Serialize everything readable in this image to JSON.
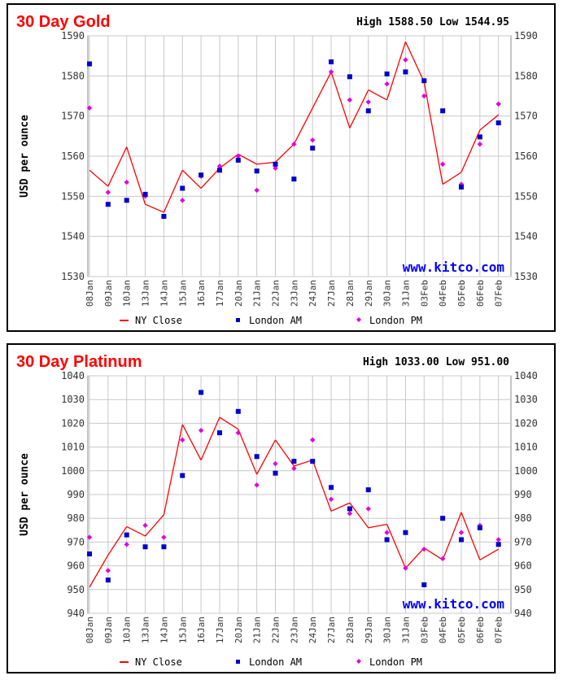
{
  "charts": [
    {
      "id": "gold",
      "title": "30 Day Gold",
      "high_label": "High",
      "high": "1588.50",
      "low_label": "Low",
      "low": "1544.95",
      "ylabel": "USD per ounce",
      "watermark": "www.kitco.com",
      "legend": [
        "NY Close",
        "London AM",
        "London PM"
      ],
      "yticks": [
        "1590",
        "1580",
        "1570",
        "1560",
        "1550",
        "1540",
        "1530"
      ],
      "chart_data": {
        "type": "line",
        "categories": [
          "08Jan",
          "09Jan",
          "10Jan",
          "13Jan",
          "14Jan",
          "15Jan",
          "16Jan",
          "17Jan",
          "20Jan",
          "21Jan",
          "22Jan",
          "23Jan",
          "24Jan",
          "27Jan",
          "28Jan",
          "29Jan",
          "30Jan",
          "31Jan",
          "03Feb",
          "04Feb",
          "05Feb",
          "06Feb",
          "07Feb"
        ],
        "ylim": [
          1530,
          1590
        ],
        "series": [
          {
            "name": "NY Close",
            "type": "line",
            "values": [
              1556.5,
              1552.5,
              1562.3,
              1548.0,
              1546.0,
              1556.5,
              1552.0,
              1557.0,
              1560.5,
              1558.0,
              1558.5,
              1563.0,
              1572.0,
              1581.0,
              1567.0,
              1576.5,
              1574.0,
              1588.5,
              1578.5,
              1553.0,
              1556.0,
              1566.5,
              1570.3
            ]
          },
          {
            "name": "London AM",
            "type": "scatter",
            "values": [
              1583.0,
              1548.0,
              1549.0,
              1550.5,
              1545.0,
              1552.0,
              1555.3,
              1556.5,
              1559.0,
              1556.3,
              1558.0,
              1554.3,
              1562.0,
              1583.5,
              1579.8,
              1571.3,
              1580.5,
              1581.0,
              1578.8,
              1571.3,
              1552.3,
              1564.8,
              1568.3
            ]
          },
          {
            "name": "London PM",
            "type": "scatter",
            "values": [
              1572.0,
              1551.0,
              1553.5,
              1550.0,
              1544.95,
              1549.0,
              1555.0,
              1557.5,
              1560.0,
              1551.5,
              1557.0,
              1563.0,
              1564.0,
              1581.0,
              1574.0,
              1573.5,
              1578.0,
              1584.0,
              1575.0,
              1558.0,
              1553.0,
              1563.0,
              1573.0
            ]
          }
        ]
      }
    },
    {
      "id": "plat",
      "title": "30 Day Platinum",
      "high_label": "High",
      "high": "1033.00",
      "low_label": "Low",
      "low": "951.00",
      "ylabel": "USD per ounce",
      "watermark": "www.kitco.com",
      "legend": [
        "NY Close",
        "London AM",
        "London PM"
      ],
      "yticks": [
        "1040",
        "1030",
        "1020",
        "1010",
        "1000",
        "990",
        "980",
        "970",
        "960",
        "950",
        "940"
      ],
      "chart_data": {
        "type": "line",
        "categories": [
          "08Jan",
          "09Jan",
          "10Jan",
          "13Jan",
          "14Jan",
          "15Jan",
          "16Jan",
          "17Jan",
          "20Jan",
          "21Jan",
          "22Jan",
          "23Jan",
          "24Jan",
          "27Jan",
          "28Jan",
          "29Jan",
          "30Jan",
          "31Jan",
          "03Feb",
          "04Feb",
          "05Feb",
          "06Feb",
          "07Feb"
        ],
        "ylim": [
          940,
          1040
        ],
        "series": [
          {
            "name": "NY Close",
            "type": "line",
            "values": [
              951.0,
              964.5,
              976.5,
              972.5,
              981.5,
              1019.5,
              1004.5,
              1022.5,
              1017.5,
              998.5,
              1013.0,
              1002.0,
              1004.5,
              983.0,
              986.5,
              976.0,
              977.5,
              959.0,
              967.5,
              962.5,
              982.5,
              962.5,
              967.0
            ]
          },
          {
            "name": "London AM",
            "type": "scatter",
            "values": [
              965.0,
              954.0,
              973.0,
              968.0,
              968.0,
              998.0,
              1033.0,
              1016.0,
              1025.0,
              1006.0,
              999.0,
              1004.0,
              1004.0,
              993.0,
              984.0,
              992.0,
              971.0,
              974.0,
              952.0,
              980.0,
              971.0,
              976.0,
              969.0
            ]
          },
          {
            "name": "London PM",
            "type": "scatter",
            "values": [
              972.0,
              958.0,
              969.0,
              977.0,
              972.0,
              1013.0,
              1017.0,
              1016.0,
              1016.0,
              994.0,
              1003.0,
              1001.0,
              1013.0,
              988.0,
              982.0,
              984.0,
              974.0,
              959.0,
              967.0,
              963.0,
              974.0,
              977.0,
              971.0
            ]
          }
        ]
      }
    }
  ]
}
